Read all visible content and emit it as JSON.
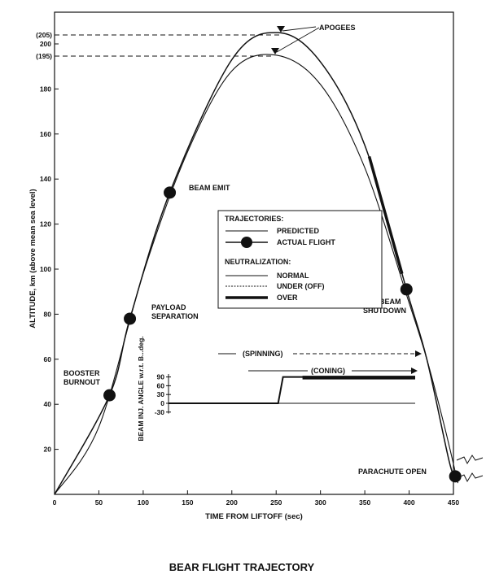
{
  "chart_data": {
    "type": "line",
    "title": "BEAR FLIGHT TRAJECTORY",
    "xlabel": "TIME FROM LIFTOFF (sec)",
    "ylabel": "ALTITUDE, km (above mean sea level)",
    "xlim": [
      0,
      450
    ],
    "ylim": [
      0,
      210
    ],
    "x_ticks": [
      "0",
      "50",
      "100",
      "150",
      "200",
      "250",
      "300",
      "350",
      "400",
      "450"
    ],
    "y_ticks": [
      "20",
      "40",
      "60",
      "80",
      "100",
      "120",
      "140",
      "160",
      "180",
      "200"
    ],
    "apogee_labels": [
      "(205)",
      "(195)"
    ],
    "apogee_values": [
      205,
      195
    ],
    "apogee_times": [
      252,
      250
    ],
    "series": [
      {
        "name": "PREDICTED",
        "x": [
          0,
          50,
          100,
          150,
          200,
          250,
          300,
          350,
          400,
          420,
          440,
          455
        ],
        "y": [
          0,
          30,
          98,
          152,
          188,
          195,
          182,
          145,
          85,
          60,
          30,
          5
        ]
      },
      {
        "name": "ACTUAL FLIGHT",
        "x": [
          0,
          62,
          85,
          130,
          200,
          252,
          300,
          350,
          397,
          420,
          445,
          452
        ],
        "y": [
          0,
          44,
          78,
          134,
          193,
          205,
          192,
          155,
          91,
          60,
          15,
          8
        ]
      }
    ],
    "events": [
      {
        "label": "BOOSTER BURNOUT",
        "t": 62,
        "alt": 44
      },
      {
        "label": "PAYLOAD SEPARATION",
        "t": 85,
        "alt": 78
      },
      {
        "label": "BEAM EMIT",
        "t": 130,
        "alt": 134
      },
      {
        "label": "BEAM SHUTDOWN",
        "t": 397,
        "alt": 91
      },
      {
        "label": "PARACHUTE OPEN",
        "t": 452,
        "alt": 8
      }
    ],
    "apogee_label": "APOGEES",
    "legend": {
      "trajectories_title": "TRAJECTORIES:",
      "predicted": "PREDICTED",
      "actual": "ACTUAL FLIGHT",
      "neutralization_title": "NEUTRALIZATION:",
      "normal": "NORMAL",
      "under": "UNDER (OFF)",
      "over": "OVER"
    },
    "inset": {
      "ylabel": "BEAM INJ. ANGLE w.r.t. B...deg.",
      "yticks": [
        "90",
        "60",
        "30",
        "0",
        "-30"
      ],
      "spinning_label": "(SPINNING)",
      "coning_label": "(CONING)",
      "angle_t": [
        0,
        180,
        188,
        405
      ],
      "angle_deg": [
        0,
        0,
        90,
        90
      ]
    }
  }
}
